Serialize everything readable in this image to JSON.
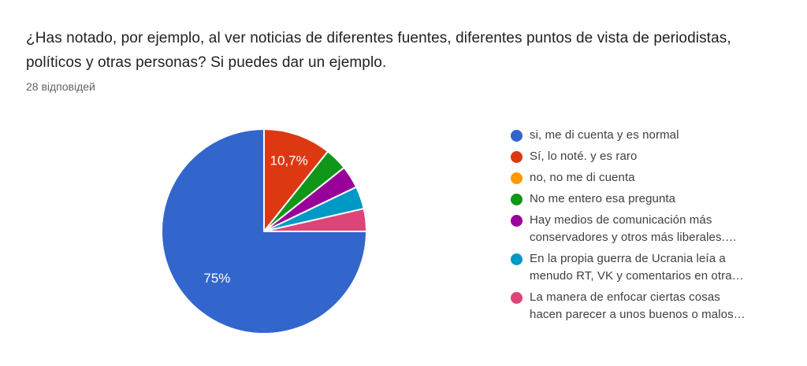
{
  "header": {
    "title": "¿Has notado, por ejemplo, al ver noticias de diferentes fuentes, diferentes puntos de vista de periodistas, políticos y otras personas? Si puedes dar un ejemplo.",
    "response_count": "28 відповідей"
  },
  "chart_data": {
    "type": "pie",
    "title": "¿Has notado, por ejemplo, al ver noticias de diferentes fuentes, diferentes puntos de vista de periodistas, políticos y otras personas? Si puedes dar un ejemplo.",
    "total_responses": 28,
    "legend_position": "right",
    "start_angle_deg": 0,
    "direction": "clockwise",
    "draw_order": [
      1,
      3,
      4,
      5,
      6,
      0
    ],
    "slices": [
      {
        "label": "si, me di cuenta y es normal",
        "label_lines": [
          "si, me di cuenta y es normal"
        ],
        "color": "#3366CC",
        "value": 21,
        "percent": 75,
        "display_label": "75%"
      },
      {
        "label": "Sí, lo noté. y es raro",
        "label_lines": [
          "Sí, lo noté. y es raro"
        ],
        "color": "#DC3912",
        "value": 3,
        "percent": 10.7,
        "display_label": "10,7%"
      },
      {
        "label": "no, no me di cuenta",
        "label_lines": [
          "no, no me di cuenta"
        ],
        "color": "#FF9900",
        "value": 0,
        "percent": 0,
        "display_label": ""
      },
      {
        "label": "No me entero esa pregunta",
        "label_lines": [
          "No me entero esa pregunta"
        ],
        "color": "#109618",
        "value": 1,
        "percent": 3.6,
        "display_label": ""
      },
      {
        "label": "Hay medios de comunicación más conservadores y otros más liberales.…",
        "label_lines": [
          "Hay medios de comunicación más",
          "conservadores y otros más liberales.…"
        ],
        "color": "#990099",
        "value": 1,
        "percent": 3.6,
        "display_label": ""
      },
      {
        "label": "En la propia guerra de Ucrania leía a menudo RT, VK y comentarios en otra…",
        "label_lines": [
          "En la propia guerra de Ucrania leía a",
          "menudo RT, VK y comentarios en otra…"
        ],
        "color": "#0099C6",
        "value": 1,
        "percent": 3.6,
        "display_label": ""
      },
      {
        "label": "La manera de enfocar ciertas cosas hacen parecer a unos buenos o malos…",
        "label_lines": [
          "La manera de enfocar ciertas cosas",
          "hacen parecer a unos buenos o malos…"
        ],
        "color": "#DD4477",
        "value": 1,
        "percent": 3.6,
        "display_label": ""
      }
    ]
  }
}
